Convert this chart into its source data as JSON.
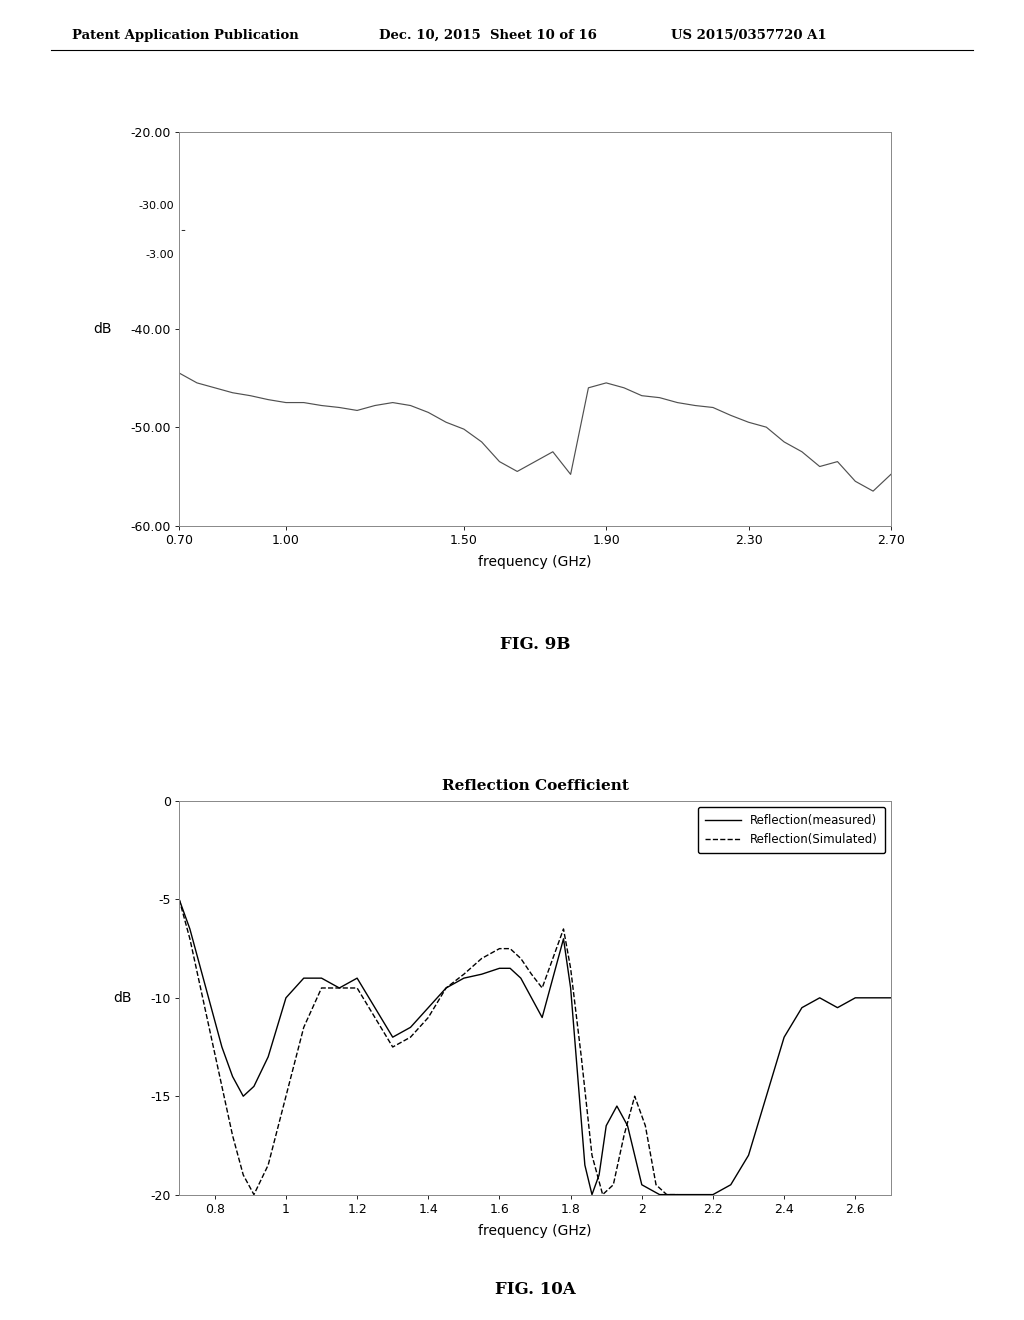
{
  "header_left": "Patent Application Publication",
  "header_center": "Dec. 10, 2015  Sheet 10 of 16",
  "header_right": "US 2015/0357720 A1",
  "fig9b": {
    "xlabel": "frequency (GHz)",
    "ylabel": "dB",
    "ylim": [
      -60.0,
      -20.0
    ],
    "xlim": [
      0.7,
      2.7
    ],
    "yticks": [
      -60.0,
      -50.0,
      -40.0,
      -20.0
    ],
    "ytick_labels": [
      "-60.00",
      "-50.00",
      "-40.00",
      "-20.00"
    ],
    "xticks": [
      0.7,
      1.0,
      1.5,
      1.9,
      2.3,
      2.7
    ],
    "xtick_labels": [
      "0.70",
      "1.00",
      "1.50",
      "1.90",
      "2.30",
      "2.70"
    ],
    "caption": "FIG. 9B",
    "x": [
      0.7,
      0.75,
      0.8,
      0.85,
      0.9,
      0.95,
      1.0,
      1.05,
      1.1,
      1.15,
      1.2,
      1.25,
      1.3,
      1.35,
      1.4,
      1.45,
      1.5,
      1.55,
      1.6,
      1.65,
      1.7,
      1.75,
      1.8,
      1.85,
      1.9,
      1.95,
      2.0,
      2.05,
      2.1,
      2.15,
      2.2,
      2.25,
      2.3,
      2.35,
      2.4,
      2.45,
      2.5,
      2.55,
      2.6,
      2.65,
      2.7
    ],
    "y": [
      -44.5,
      -45.5,
      -46.0,
      -46.5,
      -46.8,
      -47.2,
      -47.5,
      -47.5,
      -47.8,
      -48.0,
      -48.3,
      -47.8,
      -47.5,
      -47.8,
      -48.5,
      -49.5,
      -50.2,
      -51.5,
      -53.5,
      -54.5,
      -53.5,
      -52.5,
      -54.8,
      -46.0,
      -45.5,
      -46.0,
      -46.8,
      -47.0,
      -47.5,
      -47.8,
      -48.0,
      -48.8,
      -49.5,
      -50.0,
      -51.5,
      -52.5,
      -54.0,
      -53.5,
      -55.5,
      -56.5,
      -54.8
    ]
  },
  "fig10a": {
    "title": "Reflection Coefficient",
    "xlabel": "frequency (GHz)",
    "ylabel": "dB",
    "ylim": [
      -20,
      0
    ],
    "xlim": [
      0.7,
      2.7
    ],
    "yticks": [
      -20,
      -15,
      -10,
      -5,
      0
    ],
    "ytick_labels": [
      "-20",
      "-15",
      "-10",
      "-5",
      "0"
    ],
    "xticks": [
      0.8,
      1.0,
      1.2,
      1.4,
      1.6,
      1.8,
      2.0,
      2.2,
      2.4,
      2.6
    ],
    "xtick_labels": [
      "0.8",
      "1",
      "1.2",
      "1.4",
      "1.6",
      "1.8",
      "2",
      "2.2",
      "2.4",
      "2.6"
    ],
    "caption": "FIG. 10A",
    "legend_measured": "Reflection(measured)",
    "legend_simulated": "Reflection(Simulated)",
    "x_measured": [
      0.7,
      0.73,
      0.76,
      0.79,
      0.82,
      0.85,
      0.88,
      0.91,
      0.95,
      1.0,
      1.05,
      1.1,
      1.15,
      1.2,
      1.25,
      1.3,
      1.35,
      1.4,
      1.45,
      1.5,
      1.55,
      1.6,
      1.63,
      1.66,
      1.69,
      1.72,
      1.75,
      1.78,
      1.8,
      1.82,
      1.84,
      1.86,
      1.88,
      1.9,
      1.93,
      1.96,
      2.0,
      2.05,
      2.1,
      2.15,
      2.2,
      2.25,
      2.3,
      2.35,
      2.4,
      2.45,
      2.5,
      2.55,
      2.6,
      2.65,
      2.7
    ],
    "y_measured": [
      -5.0,
      -6.5,
      -8.5,
      -10.5,
      -12.5,
      -14.0,
      -15.0,
      -14.5,
      -13.0,
      -10.0,
      -9.0,
      -9.0,
      -9.5,
      -9.0,
      -10.5,
      -12.0,
      -11.5,
      -10.5,
      -9.5,
      -9.0,
      -8.8,
      -8.5,
      -8.5,
      -9.0,
      -10.0,
      -11.0,
      -9.0,
      -7.0,
      -9.5,
      -14.0,
      -18.5,
      -20.0,
      -19.0,
      -16.5,
      -15.5,
      -16.5,
      -19.5,
      -20.0,
      -20.0,
      -20.0,
      -20.0,
      -19.5,
      -18.0,
      -15.0,
      -12.0,
      -10.5,
      -10.0,
      -10.5,
      -10.0,
      -10.0,
      -10.0
    ],
    "x_simulated": [
      0.7,
      0.73,
      0.76,
      0.79,
      0.82,
      0.85,
      0.88,
      0.91,
      0.95,
      1.0,
      1.05,
      1.1,
      1.15,
      1.2,
      1.25,
      1.3,
      1.35,
      1.4,
      1.45,
      1.5,
      1.55,
      1.6,
      1.63,
      1.66,
      1.69,
      1.72,
      1.75,
      1.78,
      1.8,
      1.83,
      1.86,
      1.89,
      1.92,
      1.95,
      1.98,
      2.01,
      2.04,
      2.07,
      2.1
    ],
    "y_simulated": [
      -5.0,
      -7.0,
      -9.5,
      -12.0,
      -14.5,
      -17.0,
      -19.0,
      -20.0,
      -18.5,
      -15.0,
      -11.5,
      -9.5,
      -9.5,
      -9.5,
      -11.0,
      -12.5,
      -12.0,
      -11.0,
      -9.5,
      -8.8,
      -8.0,
      -7.5,
      -7.5,
      -8.0,
      -8.8,
      -9.5,
      -8.0,
      -6.5,
      -8.5,
      -13.0,
      -18.0,
      -20.0,
      -19.5,
      -17.0,
      -15.0,
      -16.5,
      -19.5,
      -20.0,
      -20.0
    ]
  },
  "bg_color": "#ffffff",
  "line_color_9b": "#505050",
  "font_color": "#000000"
}
